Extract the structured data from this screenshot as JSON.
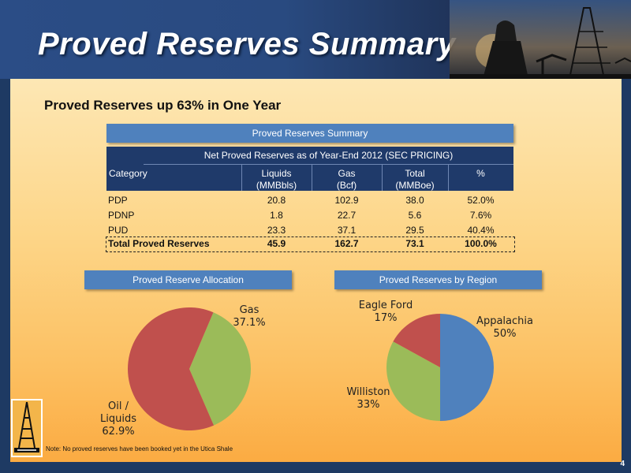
{
  "header": {
    "title": "Proved Reserves Summary"
  },
  "subtitle": "Proved Reserves up 63% in One Year",
  "table": {
    "caption": "Proved Reserves Summary",
    "group_header": "Net Proved Reserves as of Year-End  2012 (SEC PRICING)",
    "columns": [
      {
        "line1": "",
        "line2": "Category"
      },
      {
        "line1": "Liquids",
        "line2": "(MMBbls)"
      },
      {
        "line1": "Gas",
        "line2": "(Bcf)"
      },
      {
        "line1": "Total",
        "line2": "(MMBoe)"
      },
      {
        "line1": "",
        "line2": "%"
      }
    ],
    "rows": [
      {
        "category": "PDP",
        "liquids": "20.8",
        "gas": "102.9",
        "total": "38.0",
        "pct": "52.0%"
      },
      {
        "category": "PDNP",
        "liquids": "1.8",
        "gas": "22.7",
        "total": "5.6",
        "pct": "7.6%"
      },
      {
        "category": "PUD",
        "liquids": "23.3",
        "gas": "37.1",
        "total": "29.5",
        "pct": "40.4%"
      }
    ],
    "total": {
      "category": "Total Proved Reserves",
      "liquids": "45.9",
      "gas": "162.7",
      "total": "73.1",
      "pct": "100.0%"
    }
  },
  "allocation": {
    "title": "Proved Reserve Allocation"
  },
  "region": {
    "title": "Proved Reserves by Region"
  },
  "chart_data": [
    {
      "type": "pie",
      "title": "Proved Reserve Allocation",
      "slices": [
        {
          "label": "Gas",
          "value": 37.1,
          "display": "37.1%",
          "color": "#9bbb59"
        },
        {
          "label": "Oil / Liquids",
          "value": 62.9,
          "display": "62.9%",
          "color": "#c0504d"
        }
      ]
    },
    {
      "type": "pie",
      "title": "Proved Reserves by Region",
      "slices": [
        {
          "label": "Appalachia",
          "value": 50,
          "display": "50%",
          "color": "#4f81bd"
        },
        {
          "label": "Williston",
          "value": 33,
          "display": "33%",
          "color": "#9bbb59"
        },
        {
          "label": "Eagle Ford",
          "value": 17,
          "display": "17%",
          "color": "#c0504d"
        }
      ]
    }
  ],
  "note": "Note: No proved reserves  have been booked yet in the Utica Shale",
  "page_number": "4"
}
